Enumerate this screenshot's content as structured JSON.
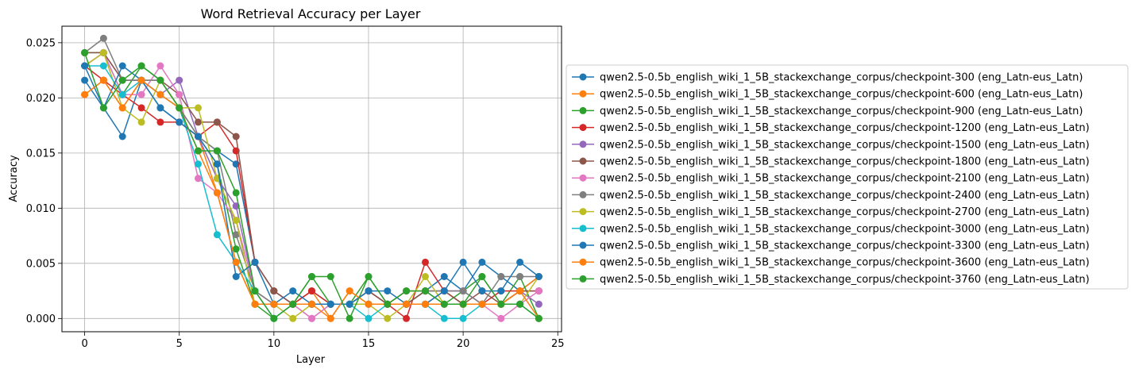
{
  "chart_data": {
    "type": "line",
    "title": "Word Retrieval Accuracy per Layer",
    "xlabel": "Layer",
    "ylabel": "Accuracy",
    "xlim": [
      -1.2,
      25.2
    ],
    "ylim": [
      -0.0012,
      0.0265
    ],
    "xticks": [
      0,
      5,
      10,
      15,
      20,
      25
    ],
    "yticks": [
      0.0,
      0.005,
      0.01,
      0.015,
      0.02,
      0.025
    ],
    "xtick_labels": [
      "0",
      "5",
      "10",
      "15",
      "20",
      "25"
    ],
    "ytick_labels": [
      "0.000",
      "0.005",
      "0.010",
      "0.015",
      "0.020",
      "0.025"
    ],
    "grid": true,
    "legend_position": "right",
    "x": [
      0,
      1,
      2,
      3,
      4,
      5,
      6,
      7,
      8,
      9,
      10,
      11,
      12,
      13,
      14,
      15,
      16,
      17,
      18,
      19,
      20,
      21,
      22,
      23,
      24
    ],
    "series": [
      {
        "name": "qwen2.5-0.5b_english_wiki_1_5B_stackexchange_corpus/checkpoint-300 (eng_Latn-eus_Latn)",
        "color": "#1f77b4",
        "values": [
          0.0216,
          0.0191,
          0.0165,
          0.0216,
          0.0191,
          0.0178,
          0.0165,
          0.0152,
          0.014,
          0.0051,
          0.0025,
          0.0013,
          0.0025,
          0.0013,
          0.0013,
          0.0025,
          0.0013,
          0.0013,
          0.0025,
          0.0038,
          0.0025,
          0.0051,
          0.0038,
          0.0025,
          0.0038
        ]
      },
      {
        "name": "qwen2.5-0.5b_english_wiki_1_5B_stackexchange_corpus/checkpoint-600 (eng_Latn-eus_Latn)",
        "color": "#ff7f0e",
        "values": [
          0.0203,
          0.0216,
          0.0191,
          0.0216,
          0.0203,
          0.0191,
          0.0165,
          0.0114,
          0.0051,
          0.0013,
          0.0013,
          0.0013,
          0.0025,
          0.0,
          0.0025,
          0.0013,
          0.0013,
          0.0025,
          0.0025,
          0.0025,
          0.0013,
          0.0013,
          0.0013,
          0.0025,
          0.0038
        ]
      },
      {
        "name": "qwen2.5-0.5b_english_wiki_1_5B_stackexchange_corpus/checkpoint-900 (eng_Latn-eus_Latn)",
        "color": "#2ca02c",
        "values": [
          0.0241,
          0.0241,
          0.0203,
          0.0229,
          0.0216,
          0.0191,
          0.0165,
          0.014,
          0.0063,
          0.0013,
          0.0,
          0.0013,
          0.0038,
          0.0013,
          0.0013,
          0.0038,
          0.0013,
          0.0013,
          0.0025,
          0.0013,
          0.0025,
          0.0038,
          0.0013,
          0.0038,
          0.0
        ]
      },
      {
        "name": "qwen2.5-0.5b_english_wiki_1_5B_stackexchange_corpus/checkpoint-1200 (eng_Latn-eus_Latn)",
        "color": "#d62728",
        "values": [
          0.0229,
          0.0216,
          0.0203,
          0.0191,
          0.0178,
          0.0178,
          0.0165,
          0.0178,
          0.0152,
          0.0051,
          0.0025,
          0.0013,
          0.0025,
          0.0013,
          0.0013,
          0.0025,
          0.0013,
          0.0,
          0.0051,
          0.0025,
          0.0013,
          0.0013,
          0.0025,
          0.0025,
          0.0025
        ]
      },
      {
        "name": "qwen2.5-0.5b_english_wiki_1_5B_stackexchange_corpus/checkpoint-1500 (eng_Latn-eus_Latn)",
        "color": "#9467bd",
        "values": [
          0.0229,
          0.0241,
          0.0216,
          0.0216,
          0.0203,
          0.0216,
          0.0165,
          0.0127,
          0.0102,
          0.0025,
          0.0013,
          0.0013,
          0.0,
          0.0013,
          0.0013,
          0.0013,
          0.0013,
          0.0013,
          0.0013,
          0.0025,
          0.0025,
          0.0013,
          0.0013,
          0.0025,
          0.0013
        ]
      },
      {
        "name": "qwen2.5-0.5b_english_wiki_1_5B_stackexchange_corpus/checkpoint-1800 (eng_Latn-eus_Latn)",
        "color": "#8c564b",
        "values": [
          0.0241,
          0.0241,
          0.0216,
          0.0216,
          0.0216,
          0.0203,
          0.0178,
          0.0178,
          0.0165,
          0.0051,
          0.0025,
          0.0013,
          0.0013,
          0.0013,
          0.0013,
          0.0025,
          0.0013,
          0.0013,
          0.0025,
          0.0025,
          0.0013,
          0.0025,
          0.0013,
          0.0025,
          0.0025
        ]
      },
      {
        "name": "qwen2.5-0.5b_english_wiki_1_5B_stackexchange_corpus/checkpoint-2100 (eng_Latn-eus_Latn)",
        "color": "#e377c2",
        "values": [
          0.0229,
          0.0241,
          0.0203,
          0.0203,
          0.0229,
          0.0203,
          0.0127,
          0.0114,
          0.0089,
          0.0025,
          0.0013,
          0.0013,
          0.0,
          0.0013,
          0.0013,
          0.0013,
          0.0013,
          0.0013,
          0.0013,
          0.0025,
          0.0025,
          0.0013,
          0.0,
          0.0013,
          0.0025
        ]
      },
      {
        "name": "qwen2.5-0.5b_english_wiki_1_5B_stackexchange_corpus/checkpoint-2400 (eng_Latn-eus_Latn)",
        "color": "#7f7f7f",
        "values": [
          0.0241,
          0.0254,
          0.0216,
          0.0216,
          0.0216,
          0.0191,
          0.0165,
          0.0152,
          0.0076,
          0.0025,
          0.0013,
          0.0013,
          0.0013,
          0.0013,
          0.0013,
          0.0013,
          0.0013,
          0.0025,
          0.0025,
          0.0025,
          0.0025,
          0.0013,
          0.0038,
          0.0038,
          0.0038
        ]
      },
      {
        "name": "qwen2.5-0.5b_english_wiki_1_5B_stackexchange_corpus/checkpoint-2700 (eng_Latn-eus_Latn)",
        "color": "#bcbd22",
        "values": [
          0.0229,
          0.0241,
          0.0191,
          0.0178,
          0.0216,
          0.0191,
          0.0191,
          0.0127,
          0.0089,
          0.0013,
          0.0013,
          0.0,
          0.0013,
          0.0013,
          0.0013,
          0.0013,
          0.0,
          0.0013,
          0.0038,
          0.0013,
          0.0013,
          0.0013,
          0.0013,
          0.0013,
          0.0038
        ]
      },
      {
        "name": "qwen2.5-0.5b_english_wiki_1_5B_stackexchange_corpus/checkpoint-3000 (eng_Latn-eus_Latn)",
        "color": "#17becf",
        "values": [
          0.0229,
          0.0229,
          0.0203,
          0.0216,
          0.0203,
          0.0191,
          0.014,
          0.0076,
          0.0051,
          0.0025,
          0.0,
          0.0013,
          0.0013,
          0.0013,
          0.0013,
          0.0,
          0.0013,
          0.0013,
          0.0013,
          0.0,
          0.0,
          0.0013,
          0.0013,
          0.0013,
          0.0
        ]
      },
      {
        "name": "qwen2.5-0.5b_english_wiki_1_5B_stackexchange_corpus/checkpoint-3300 (eng_Latn-eus_Latn)",
        "color": "#1f77b4",
        "values": [
          0.0229,
          0.0191,
          0.0229,
          0.0216,
          0.0191,
          0.0178,
          0.0165,
          0.014,
          0.0038,
          0.0051,
          0.0013,
          0.0025,
          0.0013,
          0.0013,
          0.0013,
          0.0025,
          0.0025,
          0.0013,
          0.0013,
          0.0025,
          0.0051,
          0.0025,
          0.0025,
          0.0051,
          0.0038
        ]
      },
      {
        "name": "qwen2.5-0.5b_english_wiki_1_5B_stackexchange_corpus/checkpoint-3600 (eng_Latn-eus_Latn)",
        "color": "#ff7f0e",
        "values": [
          0.0203,
          0.0216,
          0.0191,
          0.0216,
          0.0203,
          0.0191,
          0.0152,
          0.0114,
          0.0051,
          0.0013,
          0.0013,
          0.0013,
          0.0013,
          0.0,
          0.0025,
          0.0013,
          0.0013,
          0.0013,
          0.0013,
          0.0013,
          0.0013,
          0.0013,
          0.0013,
          0.0025,
          0.0
        ]
      },
      {
        "name": "qwen2.5-0.5b_english_wiki_1_5B_stackexchange_corpus/checkpoint-3760 (eng_Latn-eus_Latn)",
        "color": "#2ca02c",
        "values": [
          0.0241,
          0.0191,
          0.0216,
          0.0229,
          0.0216,
          0.0191,
          0.0152,
          0.0152,
          0.0114,
          0.0025,
          0.0,
          0.0013,
          0.0038,
          0.0038,
          0.0,
          0.0038,
          0.0013,
          0.0025,
          0.0025,
          0.0013,
          0.0013,
          0.0038,
          0.0013,
          0.0013,
          0.0
        ]
      }
    ]
  }
}
